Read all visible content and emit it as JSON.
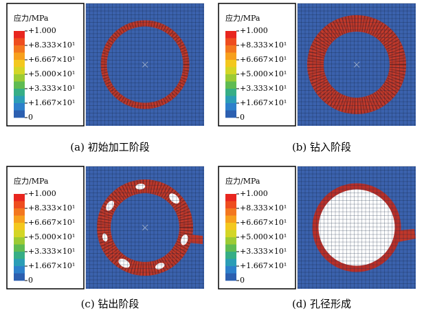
{
  "legend": {
    "title": "应力/MPa",
    "labels": [
      "+1.000",
      "+8.333×10¹",
      "+6.667×10¹",
      "+5.000×10¹",
      "+3.333×10¹",
      "+1.667×10¹",
      "0"
    ],
    "colors": [
      "#e8261f",
      "#ee4d1f",
      "#f3771f",
      "#f7a01d",
      "#f3c81e",
      "#d3d626",
      "#9ccb34",
      "#5fbb52",
      "#36ae86",
      "#2b9db6",
      "#2d80cb",
      "#2c5fb0"
    ]
  },
  "panels": [
    {
      "caption": "(a) 初始加工阶段"
    },
    {
      "caption": "(b) 钻入阶段"
    },
    {
      "caption": "(c) 钻出阶段"
    },
    {
      "caption": "(d) 孔径形成"
    }
  ]
}
